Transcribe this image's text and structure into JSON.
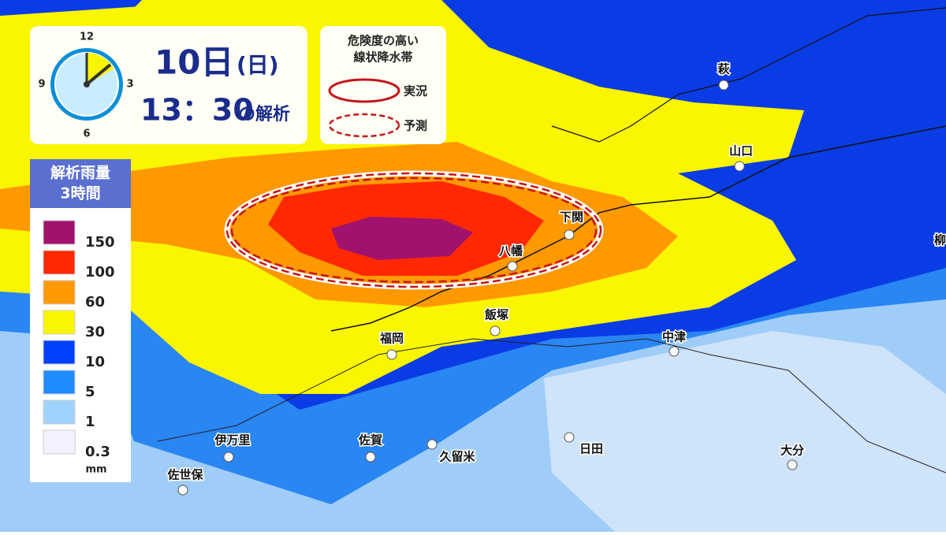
{
  "clock": {
    "labels": [
      12,
      3,
      6,
      9
    ]
  },
  "time": {
    "day": "10日",
    "weekday": "(日)",
    "time": "13：30",
    "suffix": "の解析"
  },
  "band_legend": {
    "title": [
      "危険度の高い",
      "線状降水帯"
    ],
    "observed": "実況",
    "forecast": "予測"
  },
  "rain_legend": {
    "title": [
      "解析雨量",
      "3時間"
    ],
    "levels": [
      {
        "label": 150,
        "color": "#a0126e"
      },
      {
        "label": 100,
        "color": "#ff2800"
      },
      {
        "label": 60,
        "color": "#ff9900"
      },
      {
        "label": 30,
        "color": "#faf500"
      },
      {
        "label": 10,
        "color": "#0041ff"
      },
      {
        "label": 5,
        "color": "#218cff"
      },
      {
        "label": 1,
        "color": "#a0d2ff"
      },
      {
        "label": 0.3,
        "color": "#f2f2ff"
      }
    ],
    "unit": "mm"
  },
  "cities": [
    "萩",
    "山口",
    "下関",
    "八幡",
    "飯塚",
    "福岡",
    "中津",
    "伊万里",
    "佐賀",
    "久留米",
    "日田",
    "大分",
    "佐世保",
    "柳"
  ]
}
